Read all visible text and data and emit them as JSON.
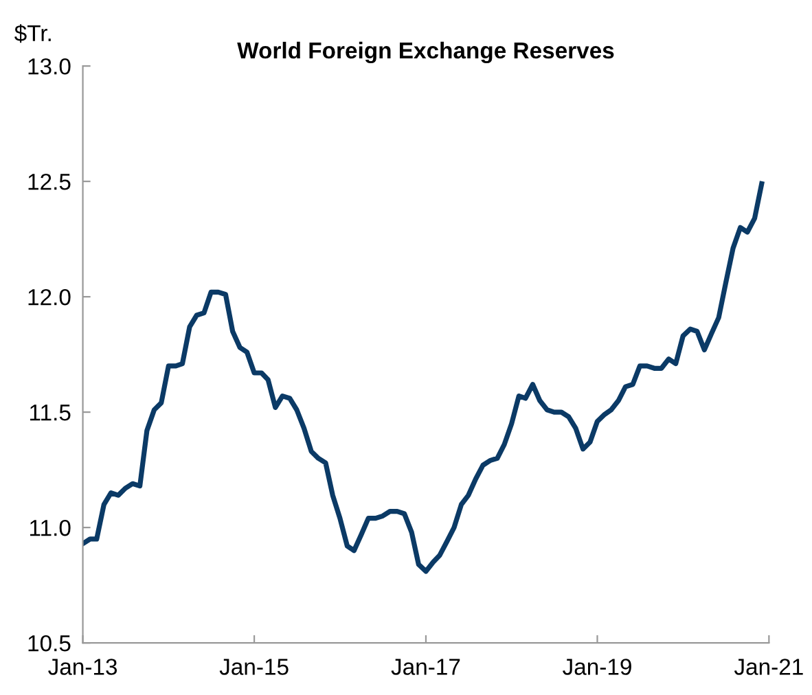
{
  "chart_data": {
    "type": "line",
    "title": "World Foreign Exchange Reserves",
    "ylabel": "$Tr.",
    "x": [
      "2013-01",
      "2013-02",
      "2013-03",
      "2013-04",
      "2013-05",
      "2013-06",
      "2013-07",
      "2013-08",
      "2013-09",
      "2013-10",
      "2013-11",
      "2013-12",
      "2014-01",
      "2014-02",
      "2014-03",
      "2014-04",
      "2014-05",
      "2014-06",
      "2014-07",
      "2014-08",
      "2014-09",
      "2014-10",
      "2014-11",
      "2014-12",
      "2015-01",
      "2015-02",
      "2015-03",
      "2015-04",
      "2015-05",
      "2015-06",
      "2015-07",
      "2015-08",
      "2015-09",
      "2015-10",
      "2015-11",
      "2015-12",
      "2016-01",
      "2016-02",
      "2016-03",
      "2016-04",
      "2016-05",
      "2016-06",
      "2016-07",
      "2016-08",
      "2016-09",
      "2016-10",
      "2016-11",
      "2016-12",
      "2017-01",
      "2017-02",
      "2017-03",
      "2017-04",
      "2017-05",
      "2017-06",
      "2017-07",
      "2017-08",
      "2017-09",
      "2017-10",
      "2017-11",
      "2017-12",
      "2018-01",
      "2018-02",
      "2018-03",
      "2018-04",
      "2018-05",
      "2018-06",
      "2018-07",
      "2018-08",
      "2018-09",
      "2018-10",
      "2018-11",
      "2018-12",
      "2019-01",
      "2019-02",
      "2019-03",
      "2019-04",
      "2019-05",
      "2019-06",
      "2019-07",
      "2019-08",
      "2019-09",
      "2019-10",
      "2019-11",
      "2019-12",
      "2020-01",
      "2020-02",
      "2020-03",
      "2020-04",
      "2020-05",
      "2020-06",
      "2020-07",
      "2020-08",
      "2020-09",
      "2020-10",
      "2020-11",
      "2020-12"
    ],
    "series": [
      {
        "color": "#0b3a66",
        "values": [
          10.93,
          10.95,
          10.95,
          11.1,
          11.15,
          11.14,
          11.17,
          11.19,
          11.18,
          11.42,
          11.51,
          11.54,
          11.7,
          11.7,
          11.71,
          11.87,
          11.92,
          11.93,
          12.02,
          12.02,
          12.01,
          11.85,
          11.78,
          11.76,
          11.67,
          11.67,
          11.64,
          11.52,
          11.57,
          11.56,
          11.51,
          11.43,
          11.33,
          11.3,
          11.28,
          11.14,
          11.04,
          10.92,
          10.9,
          10.97,
          11.04,
          11.04,
          11.05,
          11.07,
          11.07,
          11.06,
          10.98,
          10.84,
          10.81,
          10.85,
          10.88,
          10.94,
          11.0,
          11.1,
          11.14,
          11.21,
          11.27,
          11.29,
          11.3,
          11.36,
          11.45,
          11.57,
          11.56,
          11.62,
          11.55,
          11.51,
          11.5,
          11.5,
          11.48,
          11.43,
          11.34,
          11.37,
          11.46,
          11.49,
          11.51,
          11.55,
          11.61,
          11.62,
          11.7,
          11.7,
          11.69,
          11.69,
          11.73,
          11.71,
          11.83,
          11.86,
          11.85,
          11.77,
          11.84,
          11.91,
          12.06,
          12.21,
          12.3,
          12.28,
          12.34,
          12.49
        ]
      }
    ],
    "xlim": [
      "2013-01",
      "2021-01"
    ],
    "xticks": [
      {
        "value": "2013-01",
        "label": "Jan-13"
      },
      {
        "value": "2015-01",
        "label": "Jan-15"
      },
      {
        "value": "2017-01",
        "label": "Jan-17"
      },
      {
        "value": "2019-01",
        "label": "Jan-19"
      },
      {
        "value": "2021-01",
        "label": "Jan-21"
      }
    ],
    "ylim": [
      10.5,
      13.0
    ],
    "yticks": [
      {
        "value": 10.5,
        "label": "10.5"
      },
      {
        "value": 11.0,
        "label": "11.0"
      },
      {
        "value": 11.5,
        "label": "11.5"
      },
      {
        "value": 12.0,
        "label": "12.0"
      },
      {
        "value": 12.5,
        "label": "12.5"
      },
      {
        "value": 13.0,
        "label": "13.0"
      }
    ],
    "grid": false,
    "legend": false,
    "marker": "none",
    "line_style": "solid"
  }
}
